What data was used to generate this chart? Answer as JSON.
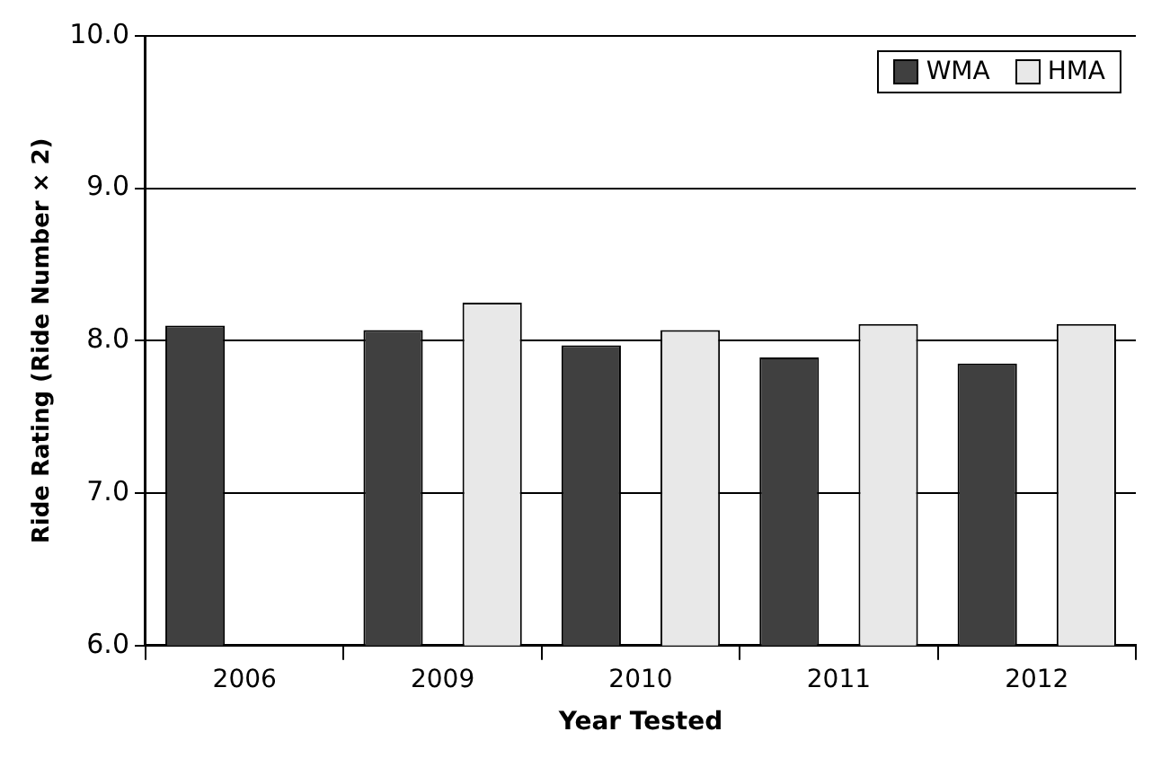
{
  "chart_data": {
    "type": "bar",
    "xlabel": "Year Tested",
    "ylabel": "Ride Rating (Ride Number × 2)",
    "categories": [
      "2006",
      "2009",
      "2010",
      "2011",
      "2012"
    ],
    "series": [
      {
        "name": "WMA",
        "color": "#404040",
        "values": [
          8.1,
          8.07,
          7.97,
          7.89,
          7.85
        ]
      },
      {
        "name": "HMA",
        "color": "#e8e8e8",
        "values": [
          null,
          8.25,
          8.07,
          8.11,
          8.11
        ]
      }
    ],
    "ylim": [
      6,
      10
    ],
    "yticks": [
      {
        "value": 6,
        "label": "6.0"
      },
      {
        "value": 7,
        "label": "7.0"
      },
      {
        "value": 8,
        "label": "8.0"
      },
      {
        "value": 9,
        "label": "9.0"
      },
      {
        "value": 10,
        "label": "10.0"
      }
    ],
    "grid": "y",
    "legend": "top right"
  }
}
